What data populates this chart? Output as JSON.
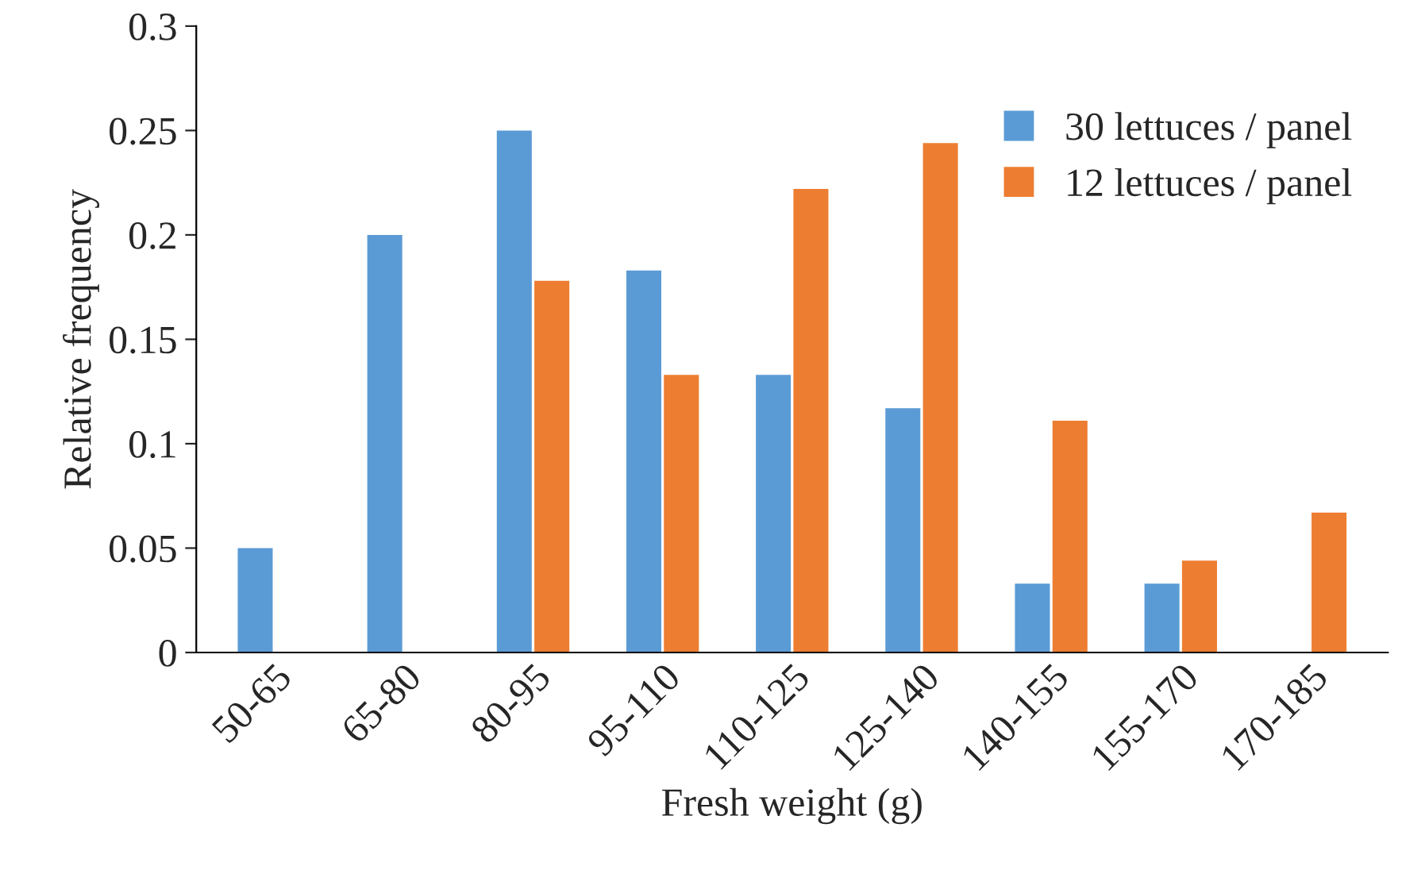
{
  "chart_data": {
    "type": "bar",
    "xlabel": "Fresh weight (g)",
    "ylabel": "Relative frequency",
    "categories": [
      "50-65",
      "65-80",
      "80-95",
      "95-110",
      "110-125",
      "125-140",
      "140-155",
      "155-170",
      "170-185"
    ],
    "series": [
      {
        "name": "30 lettuces / panel",
        "color": "#5b9bd5",
        "values": [
          0.05,
          0.2,
          0.25,
          0.183,
          0.133,
          0.117,
          0.033,
          0.033,
          0
        ]
      },
      {
        "name": "12 lettuces / panel",
        "color": "#ed7d31",
        "values": [
          0,
          0,
          0.178,
          0.133,
          0.222,
          0.244,
          0.111,
          0.044,
          0.067
        ]
      }
    ],
    "ylim": [
      0,
      0.3
    ],
    "yticks": [
      0,
      0.05,
      0.1,
      0.15,
      0.2,
      0.25,
      0.3
    ],
    "grid": false,
    "legend": "top right"
  }
}
